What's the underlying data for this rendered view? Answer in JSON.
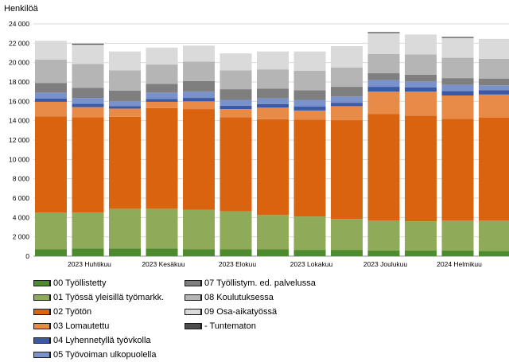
{
  "chart_data": {
    "type": "bar",
    "stacked": true,
    "ylabel": "Henkilöä",
    "ylim": [
      0,
      24000
    ],
    "yticks": [
      0,
      2000,
      4000,
      6000,
      8000,
      10000,
      12000,
      14000,
      16000,
      18000,
      20000,
      22000,
      24000
    ],
    "ytick_labels": [
      "0",
      "2 000",
      "4 000",
      "6 000",
      "8 000",
      "10 000",
      "12 000",
      "14 000",
      "16 000",
      "18 000",
      "20 000",
      "22 000",
      "24 000"
    ],
    "xtick_labels": [
      {
        "label": "2023 Huhtikuu",
        "index": 1
      },
      {
        "label": "2023 Kesäkuu",
        "index": 3
      },
      {
        "label": "2023 Elokuu",
        "index": 5
      },
      {
        "label": "2023 Lokakuu",
        "index": 7
      },
      {
        "label": "2023 Joulukuu",
        "index": 9
      },
      {
        "label": "2024 Helmikuu",
        "index": 11
      }
    ],
    "categories": [
      "2023-03",
      "2023-04",
      "2023-05",
      "2023-06",
      "2023-07",
      "2023-08",
      "2023-09",
      "2023-10",
      "2023-11",
      "2023-12",
      "2024-01",
      "2024-02",
      "2024-03"
    ],
    "grid": true,
    "legend_position": "bottom-left",
    "series": [
      {
        "name": "00 Työllistetty",
        "color": "#4e8a2e",
        "values": [
          700,
          800,
          800,
          800,
          700,
          700,
          700,
          650,
          650,
          600,
          600,
          600,
          550
        ]
      },
      {
        "name": "01 Työssä yleisillä työmarkk.",
        "color": "#8faa59",
        "values": [
          3800,
          3700,
          4100,
          4100,
          4100,
          3950,
          3550,
          3450,
          3200,
          3100,
          3000,
          3100,
          3150
        ]
      },
      {
        "name": "02 Työtön",
        "color": "#d9630f",
        "values": [
          9950,
          9850,
          9500,
          10400,
          10400,
          9700,
          9900,
          10000,
          10200,
          11000,
          10900,
          10500,
          10600
        ]
      },
      {
        "name": "03 Lomautettu",
        "color": "#e88a48",
        "values": [
          1500,
          1050,
          850,
          650,
          800,
          850,
          1200,
          950,
          1450,
          2300,
          2500,
          2400,
          2400
        ]
      },
      {
        "name": "04 Lyhennetyllä työvkolla",
        "color": "#3a5aa8",
        "values": [
          350,
          350,
          250,
          300,
          350,
          350,
          350,
          400,
          350,
          500,
          450,
          450,
          450
        ]
      },
      {
        "name": "05 Työvoiman ulkopuolella",
        "color": "#7a92cc",
        "values": [
          600,
          600,
          500,
          650,
          650,
          600,
          600,
          700,
          650,
          700,
          600,
          650,
          500
        ]
      },
      {
        "name": "07 Työllistym. ed. palvelussa",
        "color": "#7f7f7f",
        "values": [
          1000,
          1050,
          1100,
          900,
          1100,
          1100,
          1000,
          1000,
          1000,
          700,
          700,
          700,
          700
        ]
      },
      {
        "name": "08 Koulutuksessa",
        "color": "#b5b5b5",
        "values": [
          2400,
          2450,
          2100,
          2000,
          2000,
          1950,
          2000,
          2000,
          2000,
          2000,
          2100,
          2100,
          2050
        ]
      },
      {
        "name": "09 Osa-aikatyössä",
        "color": "#dadada",
        "values": [
          1950,
          2000,
          1950,
          1750,
          1650,
          1750,
          1850,
          2000,
          2200,
          2150,
          2050,
          2050,
          2050
        ]
      },
      {
        "name": "- Tuntematon",
        "color": "#4d4d4d",
        "values": [
          0,
          100,
          0,
          0,
          0,
          0,
          0,
          0,
          0,
          100,
          0,
          100,
          0
        ]
      }
    ]
  }
}
